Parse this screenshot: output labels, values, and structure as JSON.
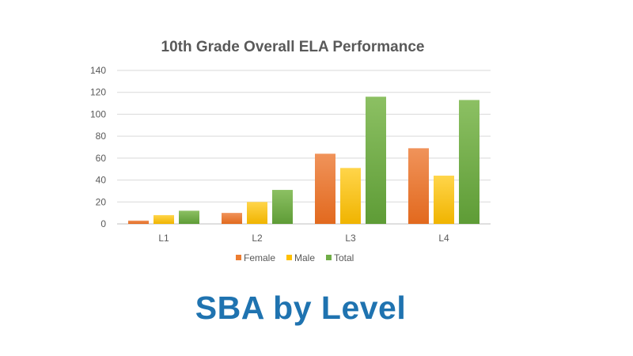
{
  "chart_data": {
    "type": "bar",
    "title": "10th Grade Overall ELA Performance",
    "categories": [
      "L1",
      "L2",
      "L3",
      "L4"
    ],
    "series": [
      {
        "name": "Female",
        "values": [
          3,
          10,
          64,
          69
        ],
        "color": "#ed7d31"
      },
      {
        "name": "Male",
        "values": [
          8,
          20,
          51,
          44
        ],
        "color": "#ffc000"
      },
      {
        "name": "Total",
        "values": [
          12,
          31,
          116,
          113
        ],
        "color": "#70ad47"
      }
    ],
    "ylim": [
      0,
      140
    ],
    "yticks": [
      0,
      20,
      40,
      60,
      80,
      100,
      120,
      140
    ],
    "grid": true,
    "legend": "bottom"
  },
  "footer": {
    "title": "SBA by Level"
  }
}
